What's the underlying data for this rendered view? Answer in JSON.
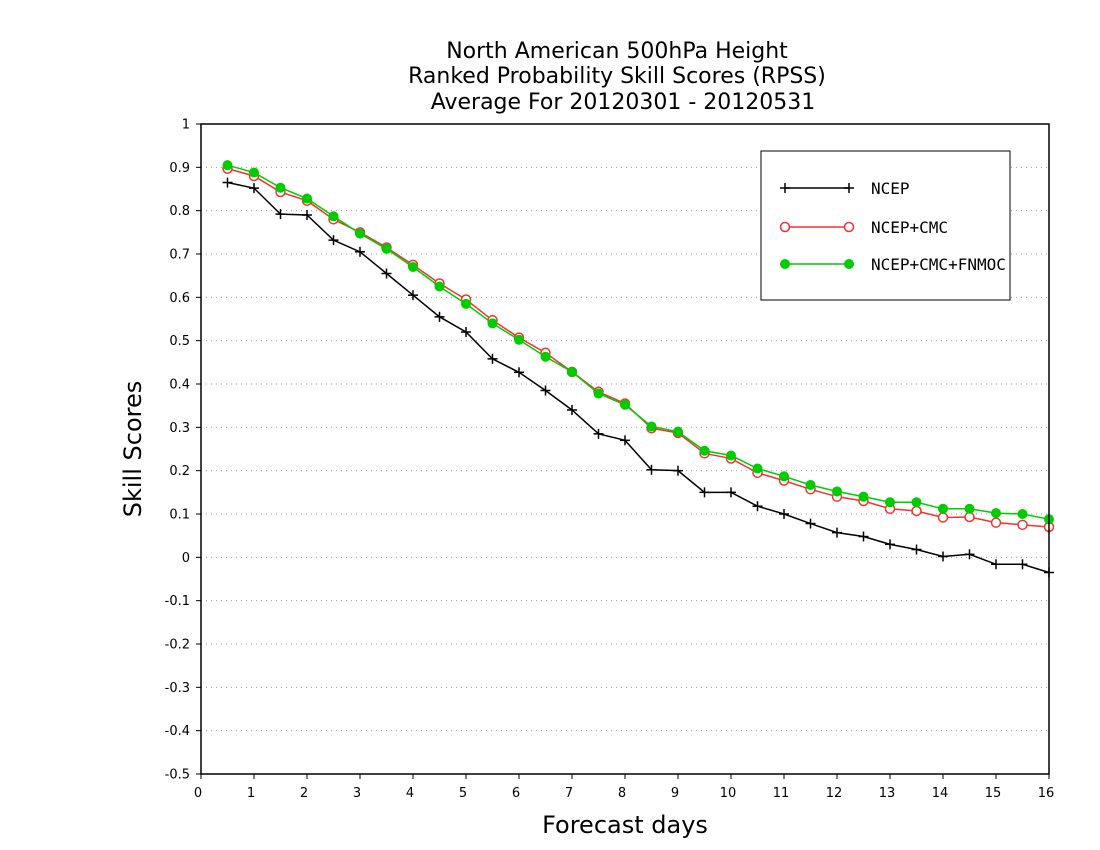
{
  "chart_data": {
    "type": "line",
    "title_lines": [
      "North American 500hPa Height",
      "Ranked Probability Skill Scores (RPSS)",
      "Average For 20120301 - 20120531"
    ],
    "xlabel": "Forecast days",
    "ylabel": "Skill Scores",
    "xlim": [
      0,
      16
    ],
    "ylim": [
      -0.5,
      1
    ],
    "x_ticks": [
      0,
      1,
      2,
      3,
      4,
      5,
      6,
      7,
      8,
      9,
      10,
      11,
      12,
      13,
      14,
      15,
      16
    ],
    "x_tick_labels": [
      "0",
      "1",
      "2",
      "3",
      "4",
      "5",
      "6",
      "7",
      "8",
      "9",
      "10",
      "11",
      "12",
      "13",
      "14",
      "15",
      "16"
    ],
    "y_ticks": [
      -0.5,
      -0.4,
      -0.3,
      -0.2,
      -0.1,
      0,
      0.1,
      0.2,
      0.3,
      0.4,
      0.5,
      0.6,
      0.7,
      0.8,
      0.9,
      1
    ],
    "y_tick_labels": [
      "-0.5",
      "-0.4",
      "-0.3",
      "-0.2",
      "-0.1",
      "0",
      "0.1",
      "0.2",
      "0.3",
      "0.4",
      "0.5",
      "0.6",
      "0.7",
      "0.8",
      "0.9",
      "1"
    ],
    "grid": "horizontal dotted",
    "legend_position": "top-right",
    "x": [
      0.5,
      1,
      1.5,
      2,
      2.5,
      3,
      3.5,
      4,
      4.5,
      5,
      5.5,
      6,
      6.5,
      7,
      7.5,
      8,
      8.5,
      9,
      9.5,
      10,
      10.5,
      11,
      11.5,
      12,
      12.5,
      13,
      13.5,
      14,
      14.5,
      15,
      15.5,
      16
    ],
    "series": [
      {
        "name": "NCEP",
        "color": "#000000",
        "marker": "plus",
        "values": [
          0.865,
          0.852,
          0.792,
          0.79,
          0.732,
          0.705,
          0.655,
          0.605,
          0.555,
          0.52,
          0.458,
          0.427,
          0.385,
          0.34,
          0.285,
          0.27,
          0.202,
          0.2,
          0.15,
          0.15,
          0.118,
          0.1,
          0.078,
          0.057,
          0.048,
          0.03,
          0.018,
          0.002,
          0.007,
          -0.016,
          -0.016,
          -0.035
        ]
      },
      {
        "name": "NCEP+CMC",
        "color": "#ee3333",
        "marker": "open-circle",
        "values": [
          0.897,
          0.88,
          0.843,
          0.823,
          0.78,
          0.75,
          0.715,
          0.675,
          0.632,
          0.595,
          0.547,
          0.507,
          0.472,
          0.428,
          0.382,
          0.355,
          0.298,
          0.287,
          0.24,
          0.228,
          0.195,
          0.177,
          0.157,
          0.14,
          0.13,
          0.112,
          0.107,
          0.092,
          0.093,
          0.08,
          0.075,
          0.07
        ]
      },
      {
        "name": "NCEP+CMC+FNMOC",
        "color": "#00cc00",
        "marker": "filled-circle",
        "values": [
          0.905,
          0.888,
          0.853,
          0.828,
          0.787,
          0.747,
          0.712,
          0.67,
          0.625,
          0.585,
          0.54,
          0.502,
          0.463,
          0.428,
          0.378,
          0.352,
          0.302,
          0.29,
          0.246,
          0.235,
          0.205,
          0.187,
          0.167,
          0.152,
          0.14,
          0.127,
          0.127,
          0.112,
          0.112,
          0.102,
          0.1,
          0.088
        ]
      }
    ]
  }
}
